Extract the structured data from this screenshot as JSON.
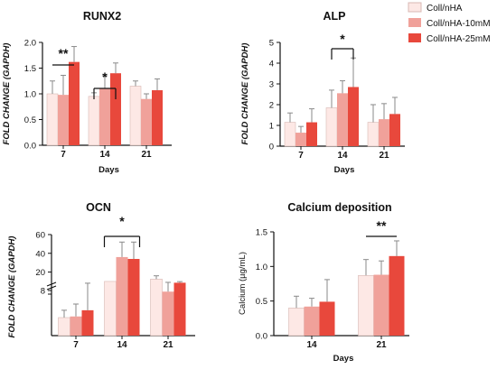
{
  "colors": {
    "series": [
      "#fde8e5",
      "#f0a19a",
      "#e8483c"
    ],
    "axis": "#111111",
    "error": "#8a8a8a"
  },
  "legend": [
    "Coll/nHA",
    "Coll/nHA-10mM",
    "Coll/nHA-25mM"
  ],
  "chart_data": [
    {
      "type": "bar",
      "title": "RUNX2",
      "ylabel": "FOLD CHANGE (GAPDH)",
      "xlabel": "Days",
      "categories": [
        "7",
        "14",
        "21"
      ],
      "ylim": [
        0,
        2.0
      ],
      "yticks": [
        "0.0",
        "0.5",
        "1.0",
        "1.5",
        "2.0"
      ],
      "series": [
        {
          "name": "Coll/nHA",
          "values": [
            1.0,
            0.95,
            1.15
          ],
          "errors": [
            0.25,
            0.07,
            0.1
          ]
        },
        {
          "name": "Coll/nHA-10mM",
          "values": [
            0.98,
            1.1,
            0.9
          ],
          "errors": [
            0.38,
            0.25,
            0.1
          ]
        },
        {
          "name": "Coll/nHA-25mM",
          "values": [
            1.62,
            1.4,
            1.07
          ],
          "errors": [
            0.3,
            0.2,
            0.22
          ]
        }
      ],
      "annotations": [
        {
          "text": "**",
          "category": "7",
          "between": [
            "Coll/nHA",
            "Coll/nHA-25mM"
          ]
        },
        {
          "text": "*",
          "category": "14",
          "between": [
            "Coll/nHA",
            "Coll/nHA-25mM"
          ]
        }
      ]
    },
    {
      "type": "bar",
      "title": "ALP",
      "ylabel": "FOLD CHANGE (GAPDH)",
      "xlabel": "Days",
      "categories": [
        "7",
        "14",
        "21"
      ],
      "ylim": [
        0,
        5
      ],
      "yticks": [
        "0",
        "1",
        "2",
        "3",
        "4",
        "5"
      ],
      "series": [
        {
          "name": "Coll/nHA",
          "values": [
            1.15,
            1.85,
            1.15
          ],
          "errors": [
            0.45,
            0.85,
            0.85
          ]
        },
        {
          "name": "Coll/nHA-10mM",
          "values": [
            0.65,
            2.55,
            1.3
          ],
          "errors": [
            0.3,
            0.6,
            0.75
          ]
        },
        {
          "name": "Coll/nHA-25mM",
          "values": [
            1.15,
            2.85,
            1.55
          ],
          "errors": [
            0.65,
            1.4,
            0.8
          ]
        }
      ],
      "annotations": [
        {
          "text": "*",
          "category": "14",
          "between": [
            "Coll/nHA",
            "Coll/nHA-25mM"
          ]
        }
      ]
    },
    {
      "type": "bar",
      "title": "OCN",
      "ylabel": "FOLD CHANGE (GAPDH)",
      "xlabel": "",
      "categories": [
        "7",
        "14",
        "21"
      ],
      "broken_axis": {
        "lower": [
          0,
          8
        ],
        "upper": [
          8,
          60
        ]
      },
      "yticks": [
        "60",
        "40",
        "20",
        "8"
      ],
      "series": [
        {
          "name": "Coll/nHA",
          "values": [
            3.2,
            10,
            12.5
          ],
          "errors": [
            1.3,
            0,
            3.5
          ]
        },
        {
          "name": "Coll/nHA-10mM",
          "values": [
            3.4,
            36,
            7.8
          ],
          "errors": [
            2.2,
            16,
            1.2
          ]
        },
        {
          "name": "Coll/nHA-25mM",
          "values": [
            4.5,
            34,
            8.6
          ],
          "errors": [
            3.6,
            18,
            1.2
          ]
        }
      ],
      "annotations": [
        {
          "text": "*",
          "category": "14",
          "between": [
            "Coll/nHA",
            "Coll/nHA-25mM"
          ]
        }
      ]
    },
    {
      "type": "bar",
      "title": "Calcium deposition",
      "ylabel": "Calcium (µg/mL)",
      "xlabel": "Days",
      "categories": [
        "14",
        "21"
      ],
      "ylim": [
        0,
        1.5
      ],
      "yticks": [
        "0.0",
        "0.5",
        "1.0",
        "1.5"
      ],
      "series": [
        {
          "name": "Coll/nHA",
          "values": [
            0.4,
            0.87
          ],
          "errors": [
            0.17,
            0.23
          ]
        },
        {
          "name": "Coll/nHA-10mM",
          "values": [
            0.42,
            0.88
          ],
          "errors": [
            0.12,
            0.2
          ]
        },
        {
          "name": "Coll/nHA-25mM",
          "values": [
            0.49,
            1.15
          ],
          "errors": [
            0.32,
            0.22
          ]
        }
      ],
      "annotations": [
        {
          "text": "**",
          "category": "21",
          "between": [
            "Coll/nHA",
            "Coll/nHA-25mM"
          ]
        }
      ]
    }
  ]
}
